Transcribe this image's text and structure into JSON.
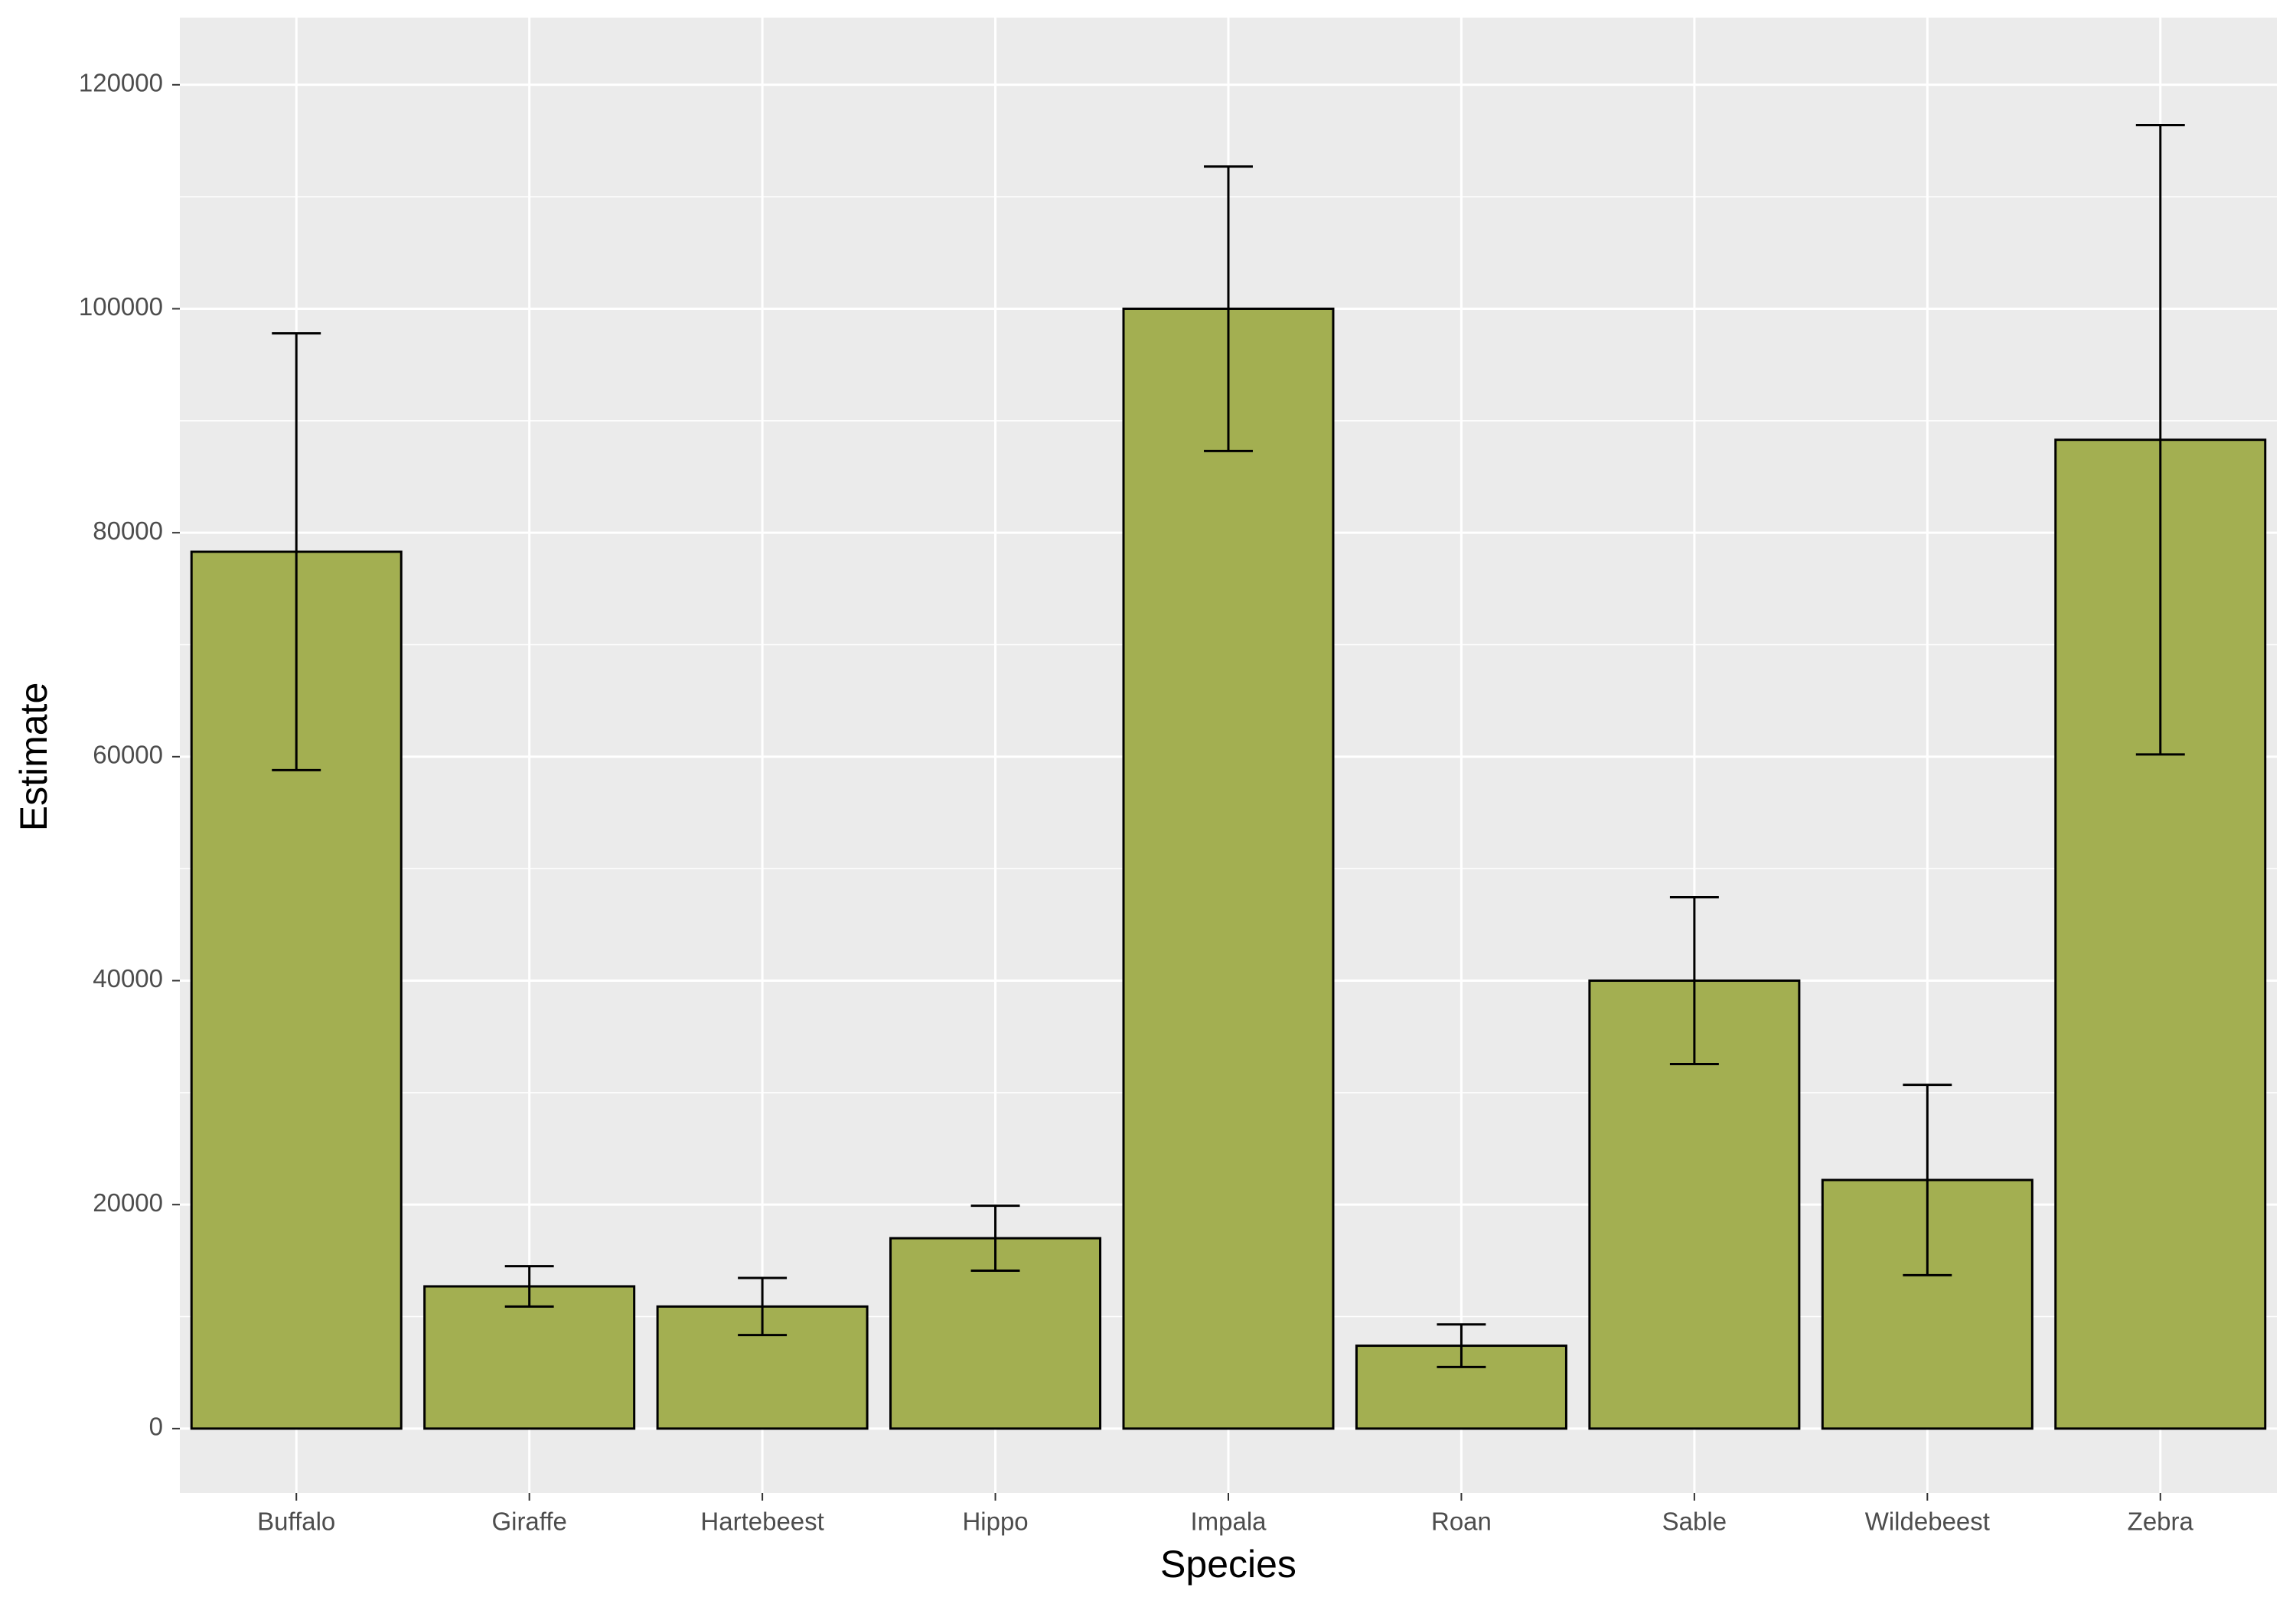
{
  "chart_data": {
    "type": "bar",
    "x_label": "Species",
    "y_label": "Estimate",
    "categories": [
      "Buffalo",
      "Giraffe",
      "Hartebeest",
      "Hippo",
      "Impala",
      "Roan",
      "Sable",
      "Wildebeest",
      "Zebra"
    ],
    "values": [
      78300,
      12700,
      10900,
      17000,
      100000,
      7400,
      40000,
      22200,
      88300
    ],
    "errors": [
      19500,
      1800,
      2550,
      2900,
      12700,
      1900,
      7450,
      8500,
      28100
    ],
    "color": "#a3af51",
    "ylim": [
      -5750,
      126000
    ],
    "yticks": [
      0,
      20000,
      40000,
      60000,
      80000,
      100000,
      120000
    ],
    "grid": true
  }
}
